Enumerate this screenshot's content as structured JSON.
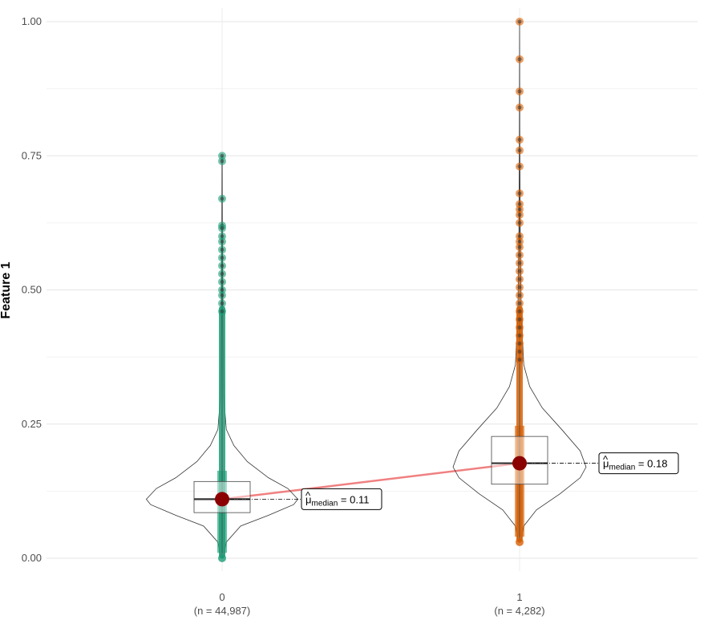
{
  "chart_data": {
    "type": "violin",
    "ylabel": "Feature 1",
    "xlabel": "",
    "ylim": [
      0,
      1
    ],
    "yticks": [
      0.0,
      0.25,
      0.5,
      0.75,
      1.0
    ],
    "ytick_labels": [
      "0.00",
      "0.25",
      "0.50",
      "0.75",
      "1.00"
    ],
    "grid": true,
    "legend": "none",
    "groups": [
      {
        "category": "0",
        "n_label": "(n = 44,987)",
        "color": "#1b9e77",
        "min": 0.0,
        "q1": 0.085,
        "median": 0.11,
        "q3": 0.143,
        "max": 0.75,
        "mean": 0.11,
        "stat_label": "0.11",
        "density": [
          [
            0.0,
            0.01
          ],
          [
            0.03,
            0.05
          ],
          [
            0.06,
            0.22
          ],
          [
            0.08,
            0.55
          ],
          [
            0.1,
            0.85
          ],
          [
            0.11,
            0.9
          ],
          [
            0.13,
            0.78
          ],
          [
            0.15,
            0.55
          ],
          [
            0.18,
            0.3
          ],
          [
            0.21,
            0.14
          ],
          [
            0.24,
            0.05
          ],
          [
            0.3,
            0.02
          ],
          [
            0.4,
            0.012
          ],
          [
            0.5,
            0.008
          ],
          [
            0.62,
            0.004
          ],
          [
            0.75,
            0.002
          ]
        ],
        "outliers": [
          0.75,
          0.74,
          0.67,
          0.62,
          0.615,
          0.6,
          0.59,
          0.575,
          0.56,
          0.545,
          0.53,
          0.515,
          0.5,
          0.49,
          0.475,
          0.46
        ]
      },
      {
        "category": "1",
        "n_label": "(n = 4,282)",
        "color": "#d95f02",
        "min": 0.03,
        "q1": 0.138,
        "median": 0.177,
        "q3": 0.227,
        "max": 1.0,
        "mean": 0.177,
        "stat_label": "0.18",
        "density": [
          [
            0.03,
            0.01
          ],
          [
            0.06,
            0.05
          ],
          [
            0.09,
            0.2
          ],
          [
            0.12,
            0.48
          ],
          [
            0.15,
            0.72
          ],
          [
            0.17,
            0.79
          ],
          [
            0.2,
            0.72
          ],
          [
            0.24,
            0.5
          ],
          [
            0.28,
            0.27
          ],
          [
            0.32,
            0.12
          ],
          [
            0.36,
            0.05
          ],
          [
            0.45,
            0.02
          ],
          [
            0.6,
            0.008
          ],
          [
            0.8,
            0.003
          ],
          [
            1.0,
            0.001
          ]
        ],
        "outliers": [
          1.0,
          0.93,
          0.87,
          0.84,
          0.78,
          0.76,
          0.73,
          0.68,
          0.66,
          0.65,
          0.64,
          0.625,
          0.6,
          0.59,
          0.58,
          0.565,
          0.55,
          0.535,
          0.52,
          0.505,
          0.49,
          0.475,
          0.46,
          0.445,
          0.43,
          0.415,
          0.4,
          0.385,
          0.37
        ]
      }
    ],
    "annotation_prefix": "μ",
    "annotation_subscript": "median",
    "annotation_eq": "=",
    "mean_point_color": "#8b0000",
    "trend_line_color": "#f08080"
  }
}
